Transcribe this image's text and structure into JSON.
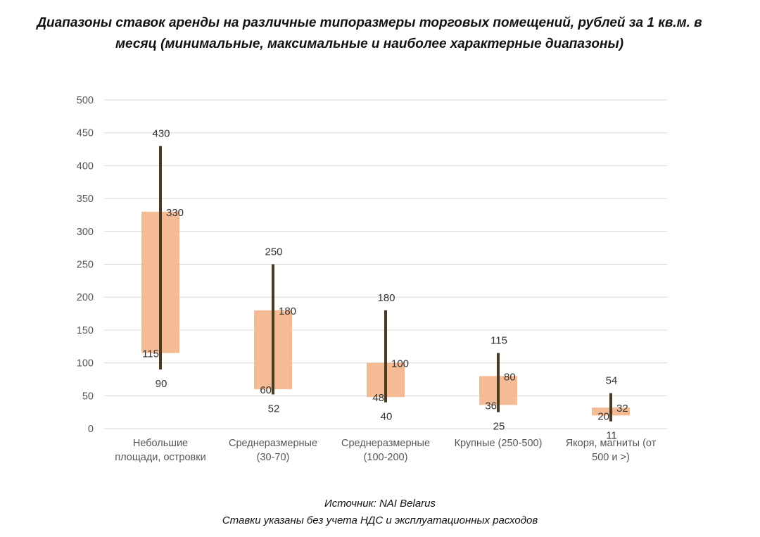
{
  "title": "Диапазоны ставок аренды на различные типоразмеры торговых помещений, рублей за 1 кв.м. в месяц (минимальные, максимальные и наиболее характерные диапазоны)",
  "footer": {
    "source": "Источник: NAI Belarus",
    "note": "Ставки указаны без учета НДС и эксплуатационных расходов"
  },
  "colors": {
    "range_line": "#4a3a22",
    "typical_box": "#f4b48a",
    "grid": "#d9d9d9",
    "axis_text": "#555555"
  },
  "chart_data": {
    "type": "range",
    "title": "Диапазоны ставок аренды на различные типоразмеры торговых помещений, рублей за 1 кв.м. в месяц (минимальные, максимальные и наиболее характерные диапазоны)",
    "xlabel": "",
    "ylabel": "",
    "ylim": [
      0,
      500
    ],
    "yticks": [
      0,
      50,
      100,
      150,
      200,
      250,
      300,
      350,
      400,
      450,
      500
    ],
    "grid": true,
    "categories": [
      [
        "Небольшие",
        "площади, островки"
      ],
      [
        "Среднеразмерные",
        "(30-70)"
      ],
      [
        "Среднеразмерные",
        "(100-200)"
      ],
      [
        "Крупные (250-500)"
      ],
      [
        "Якоря, магниты (от",
        "500 и >)"
      ]
    ],
    "series": [
      {
        "name": "min",
        "values": [
          90,
          52,
          40,
          25,
          11
        ]
      },
      {
        "name": "max",
        "values": [
          430,
          250,
          180,
          115,
          54
        ]
      },
      {
        "name": "typical_low",
        "values": [
          115,
          60,
          48,
          36,
          20
        ]
      },
      {
        "name": "typical_high",
        "values": [
          330,
          180,
          100,
          80,
          32
        ]
      }
    ]
  }
}
